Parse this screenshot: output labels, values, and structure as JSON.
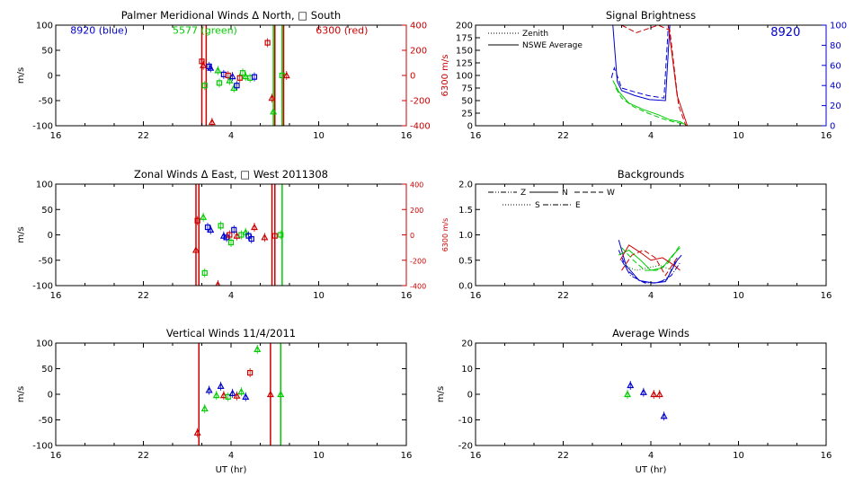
{
  "colors": {
    "blue": "#0000cc",
    "green": "#00cc00",
    "red": "#cc0000",
    "black": "#000000",
    "darkgreen": "#006600"
  },
  "chart_data": [
    {
      "id": "merid",
      "type": "scatter",
      "title": "Palmer Meridional Winds Δ North, □ South",
      "ylabel": "m/s",
      "xlabel": "",
      "xlim": [
        16,
        40
      ],
      "x_ticks": [
        16,
        22,
        28,
        34,
        40
      ],
      "x_tick_labels": [
        "16",
        "22",
        "4",
        "10",
        "16"
      ],
      "ylim": [
        -100,
        100
      ],
      "y_ticks": [
        -100,
        -50,
        0,
        50,
        100
      ],
      "y_tick_labels": [
        "-100",
        "-50",
        "0",
        "50",
        "100"
      ],
      "right_axis": {
        "label": "6300 m/s",
        "color": "red",
        "lim": [
          -400,
          400
        ],
        "ticks": [
          -400,
          -200,
          0,
          200,
          400
        ],
        "tick_labels": [
          "-400",
          "-200",
          "0",
          "200",
          "400"
        ]
      },
      "annotations": [
        {
          "text": "8920 (blue)",
          "color": "blue",
          "x": 17,
          "y": 90
        },
        {
          "text": "5577 (green)",
          "color": "green",
          "x": 24,
          "y": 90
        },
        {
          "text": "6300 (red)",
          "color": "red",
          "x": 33.8,
          "y": 90
        }
      ],
      "vlines": [
        {
          "x": 26.0,
          "color": "red"
        },
        {
          "x": 26.3,
          "color": "red"
        },
        {
          "x": 30.9,
          "color": "green"
        },
        {
          "x": 31.0,
          "color": "red"
        },
        {
          "x": 31.5,
          "color": "green"
        },
        {
          "x": 31.6,
          "color": "red"
        }
      ],
      "points": [
        {
          "x": 26.0,
          "y": 28,
          "m": "square",
          "c": "red"
        },
        {
          "x": 26.1,
          "y": 20,
          "m": "tri",
          "c": "red"
        },
        {
          "x": 26.2,
          "y": -20,
          "m": "square",
          "c": "green"
        },
        {
          "x": 26.5,
          "y": 18,
          "m": "square",
          "c": "blue"
        },
        {
          "x": 26.6,
          "y": 15,
          "m": "tri",
          "c": "blue"
        },
        {
          "x": 26.7,
          "y": -93,
          "m": "tri",
          "c": "red"
        },
        {
          "x": 27.1,
          "y": 10,
          "m": "tri",
          "c": "green"
        },
        {
          "x": 27.2,
          "y": -15,
          "m": "square",
          "c": "green"
        },
        {
          "x": 27.5,
          "y": 2,
          "m": "square",
          "c": "blue"
        },
        {
          "x": 27.8,
          "y": 0,
          "m": "square",
          "c": "red"
        },
        {
          "x": 27.9,
          "y": -10,
          "m": "tri",
          "c": "green"
        },
        {
          "x": 28.1,
          "y": -2,
          "m": "tri",
          "c": "blue"
        },
        {
          "x": 28.2,
          "y": -25,
          "m": "tri",
          "c": "green"
        },
        {
          "x": 28.4,
          "y": -20,
          "m": "square",
          "c": "blue"
        },
        {
          "x": 28.6,
          "y": -5,
          "m": "square",
          "c": "red"
        },
        {
          "x": 28.8,
          "y": 5,
          "m": "square",
          "c": "green"
        },
        {
          "x": 29.0,
          "y": -2,
          "m": "tri",
          "c": "green"
        },
        {
          "x": 29.3,
          "y": -5,
          "m": "square",
          "c": "green"
        },
        {
          "x": 29.6,
          "y": -3,
          "m": "square",
          "c": "blue"
        },
        {
          "x": 30.5,
          "y": 65,
          "m": "square",
          "c": "red"
        },
        {
          "x": 30.8,
          "y": -45,
          "m": "tri",
          "c": "red"
        },
        {
          "x": 30.9,
          "y": -72,
          "m": "tri",
          "c": "green"
        },
        {
          "x": 31.5,
          "y": 0,
          "m": "square",
          "c": "green"
        },
        {
          "x": 31.8,
          "y": 0,
          "m": "tri",
          "c": "red"
        }
      ]
    },
    {
      "id": "bright",
      "type": "line",
      "title": "Signal Brightness",
      "ylabel": "",
      "xlabel": "",
      "xlim": [
        16,
        40
      ],
      "x_ticks": [
        16,
        22,
        28,
        34,
        40
      ],
      "x_tick_labels": [
        "16",
        "22",
        "4",
        "10",
        "16"
      ],
      "ylim": [
        0,
        200
      ],
      "y_ticks": [
        0,
        25,
        50,
        75,
        100,
        125,
        150,
        175,
        200
      ],
      "y_tick_labels": [
        "0",
        "25",
        "50",
        "75",
        "100",
        "125",
        "150",
        "175",
        "200"
      ],
      "right_axis": {
        "label": "",
        "color": "blue",
        "lim": [
          0,
          100
        ],
        "ticks": [
          0,
          20,
          40,
          60,
          80,
          100
        ],
        "tick_labels": [
          "0",
          "20",
          "40",
          "60",
          "80",
          "100"
        ]
      },
      "legend": {
        "position": "top-left",
        "entries": [
          {
            "label": "Zenith",
            "style": "dotted"
          },
          {
            "label": "NSWE Average",
            "style": "solid"
          }
        ]
      },
      "annotations": [
        {
          "text": "8920",
          "color": "blue",
          "x": 36.2,
          "y": 186
        }
      ],
      "series": [
        {
          "color": "blue",
          "dash": "dashed",
          "x": [
            25.3,
            25.5,
            26.0,
            26.8,
            27.8,
            28.9,
            29.2,
            29.5
          ],
          "y": [
            95,
            115,
            75,
            68,
            60,
            55,
            200,
            200
          ]
        },
        {
          "color": "blue",
          "dash": "solid",
          "x": [
            25.4,
            25.7,
            26.0,
            26.9,
            27.9,
            29.0,
            29.3,
            29.6
          ],
          "y": [
            200,
            88,
            70,
            60,
            52,
            50,
            200,
            200
          ]
        },
        {
          "color": "green",
          "dash": "solid",
          "x": [
            25.4,
            25.8,
            26.5,
            27.5,
            28.5,
            29.3,
            30.0,
            30.5
          ],
          "y": [
            90,
            68,
            45,
            32,
            22,
            12,
            8,
            0
          ]
        },
        {
          "color": "green",
          "dash": "dashed",
          "x": [
            25.6,
            26.0,
            26.8,
            27.8,
            28.7,
            29.5,
            30.2
          ],
          "y": [
            75,
            55,
            38,
            25,
            15,
            8,
            4
          ]
        },
        {
          "color": "red",
          "dash": "solid",
          "x": [
            25.2,
            25.8,
            26.5,
            27.5,
            28.3,
            28.8,
            29.2,
            29.8,
            30.5
          ],
          "y": [
            200,
            200,
            200,
            200,
            200,
            200,
            200,
            60,
            0
          ]
        },
        {
          "color": "red",
          "dash": "dashed",
          "x": [
            26.0,
            27.0,
            28.5,
            29.3,
            29.9,
            30.4
          ],
          "y": [
            200,
            185,
            200,
            190,
            40,
            0
          ]
        }
      ]
    },
    {
      "id": "zonal",
      "type": "scatter",
      "title": "Zonal Winds Δ East, □ West 2011308",
      "ylabel": "m/s",
      "xlabel": "",
      "xlim": [
        16,
        40
      ],
      "x_ticks": [
        16,
        22,
        28,
        34,
        40
      ],
      "x_tick_labels": [
        "16",
        "22",
        "4",
        "10",
        "16"
      ],
      "ylim": [
        -100,
        100
      ],
      "y_ticks": [
        -100,
        -50,
        0,
        50,
        100
      ],
      "y_tick_labels": [
        "-100",
        "-50",
        "0",
        "50",
        "100"
      ],
      "right_axis": {
        "label": "6300 m/s",
        "color": "red",
        "lim": [
          -400,
          400
        ],
        "ticks": [
          -400,
          -200,
          0,
          200,
          400
        ],
        "tick_labels": [
          "-400",
          "-200",
          "0",
          "200",
          "400"
        ]
      },
      "vlines": [
        {
          "x": 25.6,
          "color": "red"
        },
        {
          "x": 25.8,
          "color": "red"
        },
        {
          "x": 30.8,
          "color": "red"
        },
        {
          "x": 31.0,
          "color": "red"
        },
        {
          "x": 31.5,
          "color": "green"
        }
      ],
      "points": [
        {
          "x": 25.7,
          "y": 28,
          "m": "square",
          "c": "red"
        },
        {
          "x": 25.6,
          "y": -30,
          "m": "tri",
          "c": "red"
        },
        {
          "x": 26.1,
          "y": 35,
          "m": "tri",
          "c": "green"
        },
        {
          "x": 26.2,
          "y": -75,
          "m": "square",
          "c": "green"
        },
        {
          "x": 26.4,
          "y": 15,
          "m": "square",
          "c": "blue"
        },
        {
          "x": 26.6,
          "y": 10,
          "m": "tri",
          "c": "blue"
        },
        {
          "x": 27.1,
          "y": -98,
          "m": "tri",
          "c": "red"
        },
        {
          "x": 27.3,
          "y": 18,
          "m": "square",
          "c": "green"
        },
        {
          "x": 27.5,
          "y": -2,
          "m": "tri",
          "c": "blue"
        },
        {
          "x": 27.7,
          "y": -5,
          "m": "square",
          "c": "blue"
        },
        {
          "x": 27.9,
          "y": 0,
          "m": "square",
          "c": "red"
        },
        {
          "x": 28.0,
          "y": -15,
          "m": "square",
          "c": "green"
        },
        {
          "x": 28.2,
          "y": 10,
          "m": "square",
          "c": "blue"
        },
        {
          "x": 28.4,
          "y": -2,
          "m": "tri",
          "c": "red"
        },
        {
          "x": 28.7,
          "y": 0,
          "m": "square",
          "c": "green"
        },
        {
          "x": 29.0,
          "y": 5,
          "m": "tri",
          "c": "green"
        },
        {
          "x": 29.2,
          "y": -2,
          "m": "square",
          "c": "blue"
        },
        {
          "x": 29.4,
          "y": -8,
          "m": "square",
          "c": "blue"
        },
        {
          "x": 29.6,
          "y": 15,
          "m": "tri",
          "c": "red"
        },
        {
          "x": 30.3,
          "y": -5,
          "m": "tri",
          "c": "red"
        },
        {
          "x": 31.0,
          "y": -2,
          "m": "square",
          "c": "red"
        },
        {
          "x": 31.4,
          "y": 0,
          "m": "square",
          "c": "green"
        }
      ]
    },
    {
      "id": "back",
      "type": "line",
      "title": "Backgrounds",
      "ylabel": "",
      "xlabel": "",
      "xlim": [
        16,
        40
      ],
      "x_ticks": [
        16,
        22,
        28,
        34,
        40
      ],
      "x_tick_labels": [
        "16",
        "22",
        "4",
        "10",
        "16"
      ],
      "ylim": [
        0,
        2
      ],
      "y_ticks": [
        0,
        0.5,
        1.0,
        1.5,
        2.0
      ],
      "y_tick_labels": [
        "0.0",
        "0.5",
        "1.0",
        "1.5",
        "2.0"
      ],
      "legend": {
        "position": "top-left",
        "entries": [
          {
            "label": "Z",
            "style": "dashdotdot"
          },
          {
            "label": "N",
            "style": "solid"
          },
          {
            "label": "W",
            "style": "dashed"
          },
          {
            "label": "S",
            "style": "dotted"
          },
          {
            "label": "E",
            "style": "dashdot"
          }
        ]
      },
      "series": [
        {
          "color": "blue",
          "dash": "solid",
          "x": [
            25.8,
            26.3,
            27.2,
            28.2,
            29.0,
            29.8,
            30.1
          ],
          "y": [
            0.9,
            0.4,
            0.1,
            0.05,
            0.08,
            0.5,
            0.6
          ]
        },
        {
          "color": "blue",
          "dash": "dashed",
          "x": [
            25.8,
            26.4,
            27.3,
            28.3,
            29.1,
            29.8
          ],
          "y": [
            0.7,
            0.3,
            0.08,
            0.05,
            0.12,
            0.55
          ]
        },
        {
          "color": "blue",
          "dash": "dashdot",
          "x": [
            26.0,
            26.6,
            27.6,
            28.6,
            29.4,
            30.0
          ],
          "y": [
            0.5,
            0.2,
            0.05,
            0.06,
            0.2,
            0.45
          ]
        },
        {
          "color": "green",
          "dash": "solid",
          "x": [
            25.8,
            26.5,
            27.3,
            28.0,
            28.8,
            29.5,
            30.0
          ],
          "y": [
            0.6,
            0.7,
            0.5,
            0.3,
            0.35,
            0.6,
            0.75
          ]
        },
        {
          "color": "green",
          "dash": "dashed",
          "x": [
            26.0,
            26.8,
            27.6,
            28.4,
            29.2,
            30.0
          ],
          "y": [
            0.75,
            0.5,
            0.3,
            0.3,
            0.45,
            0.8
          ]
        },
        {
          "color": "red",
          "dash": "solid",
          "x": [
            25.9,
            26.5,
            27.3,
            28.0,
            28.8,
            29.6,
            30.0
          ],
          "y": [
            0.5,
            0.8,
            0.65,
            0.5,
            0.55,
            0.4,
            0.3
          ]
        },
        {
          "color": "red",
          "dash": "dashed",
          "x": [
            26.0,
            26.7,
            27.5,
            28.3,
            29.0,
            29.8
          ],
          "y": [
            0.3,
            0.6,
            0.7,
            0.55,
            0.2,
            0.55
          ]
        },
        {
          "color": "darkgreen",
          "dash": "dotted",
          "x": [
            26.2,
            27.0,
            27.8,
            28.6,
            29.5
          ],
          "y": [
            0.4,
            0.3,
            0.35,
            0.4,
            0.3
          ]
        }
      ]
    },
    {
      "id": "vert",
      "type": "scatter",
      "title": "Vertical Winds 11/4/2011",
      "ylabel": "m/s",
      "xlabel": "UT (hr)",
      "xlim": [
        16,
        40
      ],
      "x_ticks": [
        16,
        22,
        28,
        34,
        40
      ],
      "x_tick_labels": [
        "16",
        "22",
        "4",
        "10",
        "16"
      ],
      "ylim": [
        -100,
        100
      ],
      "y_ticks": [
        -100,
        -50,
        0,
        50,
        100
      ],
      "y_tick_labels": [
        "-100",
        "-50",
        "0",
        "50",
        "100"
      ],
      "vlines": [
        {
          "x": 25.8,
          "color": "red"
        },
        {
          "x": 30.7,
          "color": "red"
        },
        {
          "x": 31.4,
          "color": "green"
        }
      ],
      "points": [
        {
          "x": 25.7,
          "y": -75,
          "m": "tri",
          "c": "red"
        },
        {
          "x": 26.2,
          "y": -28,
          "m": "tri",
          "c": "green"
        },
        {
          "x": 26.5,
          "y": 8,
          "m": "tri",
          "c": "blue"
        },
        {
          "x": 27.0,
          "y": -2,
          "m": "tri",
          "c": "green"
        },
        {
          "x": 27.3,
          "y": 16,
          "m": "tri",
          "c": "blue"
        },
        {
          "x": 27.5,
          "y": -2,
          "m": "tri",
          "c": "red"
        },
        {
          "x": 27.8,
          "y": -5,
          "m": "square",
          "c": "green"
        },
        {
          "x": 28.1,
          "y": 2,
          "m": "tri",
          "c": "blue"
        },
        {
          "x": 28.4,
          "y": -3,
          "m": "tri",
          "c": "red"
        },
        {
          "x": 28.7,
          "y": 5,
          "m": "tri",
          "c": "green"
        },
        {
          "x": 29.0,
          "y": -5,
          "m": "tri",
          "c": "blue"
        },
        {
          "x": 29.3,
          "y": 42,
          "m": "square",
          "c": "red"
        },
        {
          "x": 29.8,
          "y": 88,
          "m": "tri",
          "c": "green"
        },
        {
          "x": 30.7,
          "y": 0,
          "m": "tri",
          "c": "red"
        },
        {
          "x": 31.4,
          "y": 0,
          "m": "tri",
          "c": "green"
        }
      ]
    },
    {
      "id": "avg",
      "type": "scatter",
      "title": "Average Winds",
      "ylabel": "m/s",
      "xlabel": "UT (hr)",
      "xlim": [
        16,
        40
      ],
      "x_ticks": [
        16,
        22,
        28,
        34,
        40
      ],
      "x_tick_labels": [
        "16",
        "22",
        "4",
        "10",
        "16"
      ],
      "ylim": [
        -20,
        20
      ],
      "y_ticks": [
        -20,
        -10,
        0,
        10,
        20
      ],
      "y_tick_labels": [
        "-20",
        "-10",
        "0",
        "10",
        "20"
      ],
      "points": [
        {
          "x": 26.4,
          "y": 0,
          "m": "tri",
          "c": "green"
        },
        {
          "x": 26.6,
          "y": 3.5,
          "m": "tri",
          "c": "blue"
        },
        {
          "x": 27.5,
          "y": 0.8,
          "m": "tri",
          "c": "blue"
        },
        {
          "x": 28.2,
          "y": 0,
          "m": "tri",
          "c": "red"
        },
        {
          "x": 28.6,
          "y": 0,
          "m": "tri",
          "c": "red"
        },
        {
          "x": 28.9,
          "y": -8.5,
          "m": "tri",
          "c": "blue"
        }
      ]
    }
  ]
}
